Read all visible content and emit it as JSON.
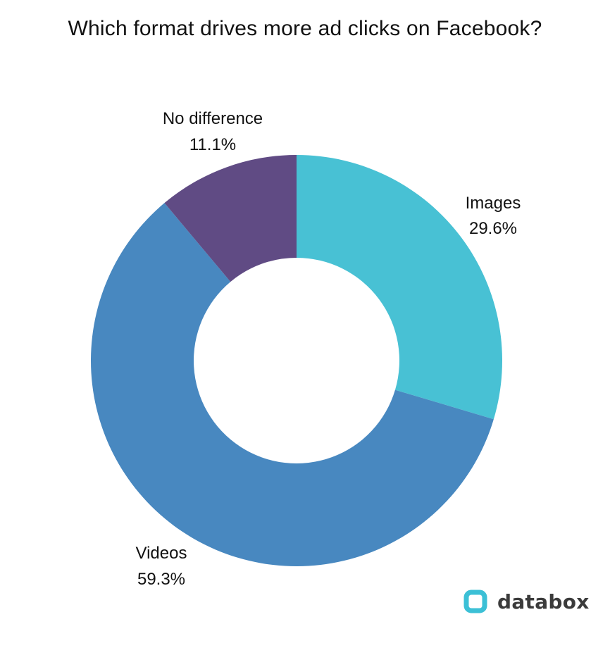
{
  "chart_data": {
    "type": "pie",
    "variant": "donut",
    "title": "Which format drives more ad clicks on Facebook?",
    "categories": [
      "Images",
      "Videos",
      "No difference"
    ],
    "values": [
      29.6,
      59.3,
      11.1
    ],
    "value_labels": [
      "29.6%",
      "59.3%",
      "11.1%"
    ],
    "colors": [
      "#48c1d4",
      "#4888c0",
      "#604b84"
    ],
    "start_angle": "top (12 o'clock), clockwise",
    "legend": "none (labels placed next to slices)"
  },
  "brand": {
    "name": "databox",
    "icon": "databox-logo-icon",
    "color": "#3cc0d6"
  }
}
